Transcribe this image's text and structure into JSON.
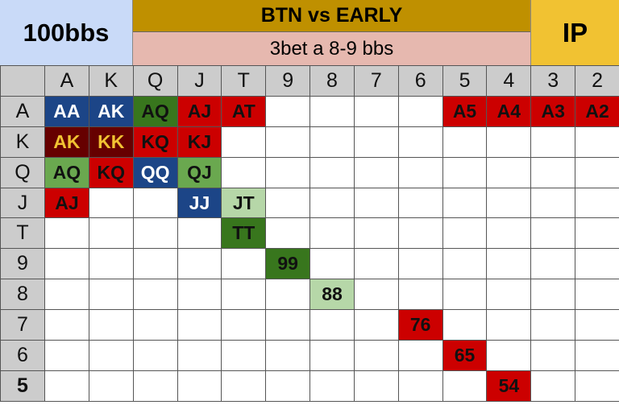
{
  "header": {
    "stack": "100bbs",
    "title": "BTN vs EARLY",
    "subtitle": "3bet a 8-9 bbs",
    "position": "IP"
  },
  "colors": {
    "b": "#1c4587",
    "r": "#cc0000",
    "dr": "#660000",
    "dg": "#38761d",
    "lg": "#6aa84f",
    "pg": "#b6d7a8",
    "title": "#bf9000",
    "subtitle": "#e6b8af",
    "position": "#f1c232",
    "stack": "#c9daf8"
  },
  "columns": [
    "A",
    "K",
    "Q",
    "J",
    "T",
    "9",
    "8",
    "7",
    "6",
    "5",
    "4",
    "3",
    "2"
  ],
  "rows": [
    {
      "label": "A",
      "cells": [
        [
          "AA",
          "b"
        ],
        [
          "AK",
          "b"
        ],
        [
          "AQ",
          "dg"
        ],
        [
          "AJ",
          "r"
        ],
        [
          "AT",
          "r"
        ],
        null,
        null,
        null,
        null,
        [
          "A5",
          "r"
        ],
        [
          "A4",
          "r"
        ],
        [
          "A3",
          "r"
        ],
        [
          "A2",
          "r"
        ]
      ]
    },
    {
      "label": "K",
      "cells": [
        [
          "AK",
          "dr"
        ],
        [
          "KK",
          "dr"
        ],
        [
          "KQ",
          "r"
        ],
        [
          "KJ",
          "r"
        ],
        null,
        null,
        null,
        null,
        null,
        null,
        null,
        null,
        null
      ]
    },
    {
      "label": "Q",
      "cells": [
        [
          "AQ",
          "lg"
        ],
        [
          "KQ",
          "r"
        ],
        [
          "QQ",
          "b"
        ],
        [
          "QJ",
          "lg"
        ],
        null,
        null,
        null,
        null,
        null,
        null,
        null,
        null,
        null
      ]
    },
    {
      "label": "J",
      "cells": [
        [
          "AJ",
          "r"
        ],
        null,
        null,
        [
          "JJ",
          "b"
        ],
        [
          "JT",
          "pg"
        ],
        null,
        null,
        null,
        null,
        null,
        null,
        null,
        null
      ]
    },
    {
      "label": "T",
      "cells": [
        null,
        null,
        null,
        null,
        [
          "TT",
          "dg"
        ],
        null,
        null,
        null,
        null,
        null,
        null,
        null,
        null
      ]
    },
    {
      "label": "9",
      "cells": [
        null,
        null,
        null,
        null,
        null,
        [
          "99",
          "dg"
        ],
        null,
        null,
        null,
        null,
        null,
        null,
        null
      ]
    },
    {
      "label": "8",
      "cells": [
        null,
        null,
        null,
        null,
        null,
        null,
        [
          "88",
          "pg"
        ],
        null,
        null,
        null,
        null,
        null,
        null
      ]
    },
    {
      "label": "7",
      "cells": [
        null,
        null,
        null,
        null,
        null,
        null,
        null,
        null,
        [
          "76",
          "r"
        ],
        null,
        null,
        null,
        null
      ]
    },
    {
      "label": "6",
      "cells": [
        null,
        null,
        null,
        null,
        null,
        null,
        null,
        null,
        null,
        [
          "65",
          "r"
        ],
        null,
        null,
        null
      ]
    },
    {
      "label": "5",
      "bold": true,
      "cells": [
        null,
        null,
        null,
        null,
        null,
        null,
        null,
        null,
        null,
        null,
        [
          "54",
          "r"
        ],
        null,
        null
      ]
    }
  ]
}
